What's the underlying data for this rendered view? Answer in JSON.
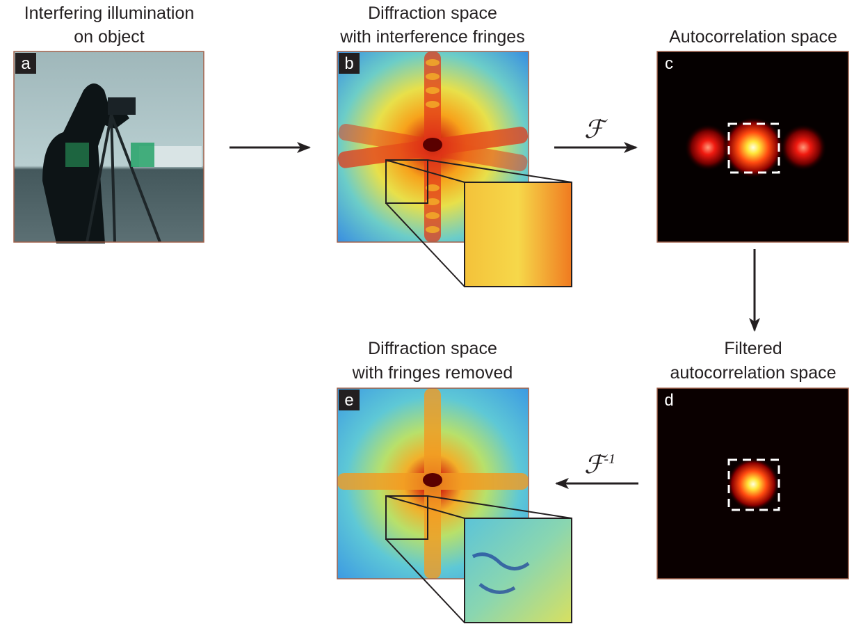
{
  "panels": [
    {
      "letter": "a",
      "title": [
        "Interfering illumination",
        "on object"
      ]
    },
    {
      "letter": "b",
      "title": [
        "Diffraction space",
        "with interference fringes"
      ]
    },
    {
      "letter": "c",
      "title": [
        "Autocorrelation space"
      ]
    },
    {
      "letter": "d",
      "title": [
        "Filtered",
        "autocorrelation space"
      ]
    },
    {
      "letter": "e",
      "title": [
        "Diffraction space",
        "with fringes removed"
      ]
    }
  ],
  "operators": [
    {
      "symbol": "ℱ"
    },
    {
      "symbol": "ℱ",
      "superscript": "-1"
    }
  ]
}
